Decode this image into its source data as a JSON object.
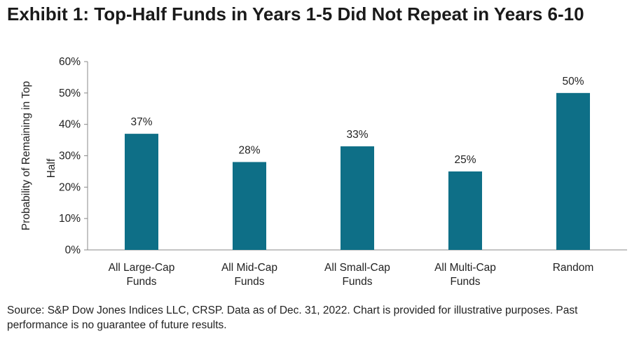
{
  "title": "Exhibit 1: Top-Half Funds in Years 1-5 Did Not Repeat in Years 6-10",
  "source": "Source: S&P Dow Jones Indices LLC, CRSP.  Data as of Dec. 31, 2022.  Chart is provided for illustrative purposes.  Past performance is no guarantee of future results.",
  "chart_data": {
    "type": "bar",
    "categories": [
      [
        "All Large-Cap",
        "Funds"
      ],
      [
        "All Mid-Cap",
        "Funds"
      ],
      [
        "All Small-Cap",
        "Funds"
      ],
      [
        "All Multi-Cap",
        "Funds"
      ],
      [
        "Random"
      ]
    ],
    "values": [
      37,
      28,
      33,
      25,
      50
    ],
    "value_labels": [
      "37%",
      "28%",
      "33%",
      "25%",
      "50%"
    ],
    "ylabel": [
      "Probability of Remaining in Top",
      "Half"
    ],
    "ylim": [
      0,
      60
    ],
    "yticks": [
      0,
      10,
      20,
      30,
      40,
      50,
      60
    ],
    "ytick_labels": [
      "0%",
      "10%",
      "20%",
      "30%",
      "40%",
      "50%",
      "60%"
    ],
    "bar_color": "#0e6f87",
    "grid": false,
    "legend": "none"
  }
}
